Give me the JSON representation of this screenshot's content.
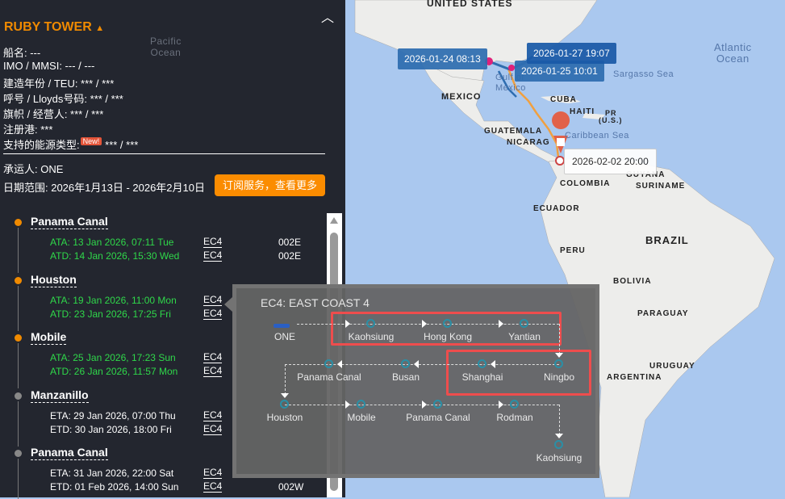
{
  "vessel": {
    "name": "RUBY TOWER",
    "fields": [
      "船名: ---",
      "IMO / MMSI: --- / ---",
      "建造年份 / TEU: *** / ***",
      "呼号 / Lloyds号码: *** / ***",
      "旗帜 / 经营人: *** / ***",
      "注册港: ***"
    ],
    "energy_label": "支持的能源类型:",
    "energy_badge": "New!",
    "energy_value": "*** / ***",
    "carrier": "承运人: ONE",
    "date_range": "日期范围: 2026年1月13日 - 2026年2月10日",
    "subscribe": "订阅服务，查看更多"
  },
  "timeline": [
    {
      "port": "Panama Canal",
      "status": "done",
      "rows": [
        {
          "text": "ATA: 13 Jan 2026, 07:11 Tue",
          "svc": "EC4",
          "voy": "002E"
        },
        {
          "text": "ATD: 14 Jan 2026, 15:30 Wed",
          "svc": "EC4",
          "voy": "002E"
        }
      ]
    },
    {
      "port": "Houston",
      "status": "done",
      "rows": [
        {
          "text": "ATA: 19 Jan 2026, 11:00 Mon",
          "svc": "EC4",
          "voy": ""
        },
        {
          "text": "ATD: 23 Jan 2026, 17:25 Fri",
          "svc": "EC4",
          "voy": ""
        }
      ]
    },
    {
      "port": "Mobile",
      "status": "done",
      "rows": [
        {
          "text": "ATA: 25 Jan 2026, 17:23 Sun",
          "svc": "EC4",
          "voy": ""
        },
        {
          "text": "ATD: 26 Jan 2026, 11:57 Mon",
          "svc": "EC4",
          "voy": ""
        }
      ]
    },
    {
      "port": "Manzanillo",
      "status": "pending",
      "rows": [
        {
          "text": "ETA: 29 Jan 2026, 07:00 Thu",
          "svc": "EC4",
          "voy": ""
        },
        {
          "text": "ETD: 30 Jan 2026, 18:00 Fri",
          "svc": "EC4",
          "voy": ""
        }
      ]
    },
    {
      "port": "Panama Canal",
      "status": "pending",
      "rows": [
        {
          "text": "ETA: 31 Jan 2026, 22:00 Sat",
          "svc": "EC4",
          "voy": ""
        },
        {
          "text": "ETD: 01 Feb 2026, 14:00 Sun",
          "svc": "EC4",
          "voy": "002W"
        }
      ]
    }
  ],
  "popup": {
    "title": "EC4: EAST COAST 4",
    "carrier": "ONE",
    "row1": [
      "Kaohsiung",
      "Hong Kong",
      "Yantian"
    ],
    "row2": [
      "Ningbo",
      "Shanghai",
      "Busan",
      "Panama Canal"
    ],
    "row3": [
      "Houston",
      "Mobile",
      "Panama Canal",
      "Rodman"
    ],
    "last": "Kaohsiung"
  },
  "map": {
    "labels": [
      "UNITED STATES",
      "MEXICO",
      "CUBA",
      "HAITI",
      "PR",
      "(U.S.)",
      "GUATEMALA",
      "NICARAG",
      "COLOMBIA",
      "GUYANA",
      "SURINAME",
      "ECUADOR",
      "BRAZIL",
      "PERU",
      "BOLIVIA",
      "PARAGUAY",
      "URUGUAY",
      "ARGENTINA"
    ],
    "seas": [
      "Gulf of",
      "Mexico",
      "Caribbean Sea",
      "Sargasso Sea"
    ],
    "oceans": [
      "Atlantic",
      "Ocean",
      "Pacific",
      "Ocean"
    ],
    "tooltips": [
      "2026-01-24 08:13",
      "2026-01-27 19:07",
      "2026-01-25 10:01",
      "2026-02-02 20:00"
    ]
  },
  "colors": {
    "accent": "#fb8c00",
    "done": "#2fd84a",
    "highlight": "#ee4d4d",
    "route": "#2e6db0"
  }
}
